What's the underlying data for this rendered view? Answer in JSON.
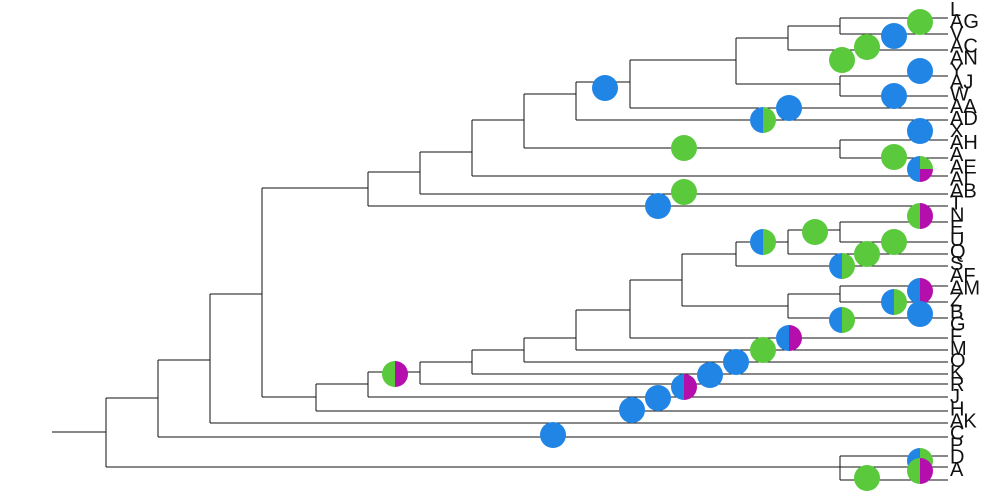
{
  "colors": {
    "green": "#5ac93c",
    "blue": "#2185e6",
    "magenta": "#b40eac",
    "branch": "#111111"
  },
  "tree": {
    "type": "phylogenetic-tree-with-pie-nodes",
    "tip_labels": [
      "L",
      "AG",
      "V",
      "AC",
      "AN",
      "Y",
      "AJ",
      "W",
      "AA",
      "AD",
      "X",
      "AH",
      "A",
      "AE",
      "AI",
      "AB",
      "T",
      "N",
      "E",
      "U",
      "Q",
      "S",
      "AF",
      "AM",
      "Z",
      "B",
      "G",
      "F",
      "M",
      "O",
      "K",
      "R",
      "J",
      "H",
      "AK",
      "C",
      "P",
      "D",
      "A"
    ],
    "node_states": [
      {
        "node": "root-of-AG-clade-1",
        "proportions": {
          "green": 1
        }
      },
      {
        "node": "root-of-AG-clade-2",
        "proportions": {
          "blue": 1
        }
      },
      {
        "node": "root-of-AG-clade-3",
        "proportions": {
          "green": 1
        }
      },
      {
        "node": "root-of-AG-clade-4",
        "proportions": {
          "green": 1
        }
      },
      {
        "node": "root-of-AJ-clade-1",
        "proportions": {
          "blue": 1
        }
      },
      {
        "node": "root-of-AJ-clade-2",
        "proportions": {
          "blue": 1
        }
      },
      {
        "node": "upper-clade-root",
        "proportions": {
          "blue": 1
        }
      },
      {
        "node": "AD-clade-1",
        "proportions": {
          "blue": 1
        }
      },
      {
        "node": "AD-clade-2",
        "proportions": {
          "blue": 0.5,
          "green": 0.5
        }
      },
      {
        "node": "AH-clade-1",
        "proportions": {
          "blue": 1
        }
      },
      {
        "node": "AH-clade-2",
        "proportions": {
          "green": 1
        }
      },
      {
        "node": "AE-tip-node",
        "proportions": {
          "blue": 0.5,
          "green": 0.25,
          "magenta": 0.25
        }
      },
      {
        "node": "AH-clade-3",
        "proportions": {
          "green": 1
        }
      },
      {
        "node": "AB-clade-1",
        "proportions": {
          "green": 1
        }
      },
      {
        "node": "AB-clade-2",
        "proportions": {
          "blue": 1
        }
      },
      {
        "node": "T-N-node",
        "proportions": {
          "magenta": 0.5,
          "green": 0.5
        }
      },
      {
        "node": "E-U-node-1",
        "proportions": {
          "green": 1
        }
      },
      {
        "node": "E-U-node-2",
        "proportions": {
          "green": 1
        }
      },
      {
        "node": "E-U-node-3",
        "proportions": {
          "blue": 0.5,
          "green": 0.5
        }
      },
      {
        "node": "Q-S-node-1",
        "proportions": {
          "green": 1
        }
      },
      {
        "node": "Q-S-node-2",
        "proportions": {
          "blue": 0.5,
          "green": 0.5
        }
      },
      {
        "node": "AF-AM-node",
        "proportions": {
          "blue": 0.5,
          "magenta": 0.5
        }
      },
      {
        "node": "Z-node",
        "proportions": {
          "blue": 0.5,
          "green": 0.5
        }
      },
      {
        "node": "B-node",
        "proportions": {
          "blue": 1
        }
      },
      {
        "node": "G-B-node",
        "proportions": {
          "blue": 0.5,
          "green": 0.5
        }
      },
      {
        "node": "F-node",
        "proportions": {
          "blue": 0.5,
          "magenta": 0.5
        }
      },
      {
        "node": "M-node",
        "proportions": {
          "green": 1
        }
      },
      {
        "node": "O-node",
        "proportions": {
          "blue": 1
        }
      },
      {
        "node": "K-node-1",
        "proportions": {
          "blue": 1
        }
      },
      {
        "node": "K-node-2",
        "proportions": {
          "blue": 0.5,
          "magenta": 0.5
        }
      },
      {
        "node": "R-node-1",
        "proportions": {
          "blue": 1
        }
      },
      {
        "node": "R-node-2",
        "proportions": {
          "blue": 1
        }
      },
      {
        "node": "middle-clade-root",
        "proportions": {
          "magenta": 0.5,
          "green": 0.5
        }
      },
      {
        "node": "AK-node",
        "proportions": {
          "blue": 1
        }
      },
      {
        "node": "C-node",
        "proportions": {
          "blue": 0.5,
          "green": 0.5
        }
      },
      {
        "node": "P-D-node",
        "proportions": {
          "magenta": 0.5,
          "green": 0.5
        }
      },
      {
        "node": "A-node",
        "proportions": {
          "green": 1
        }
      }
    ]
  }
}
